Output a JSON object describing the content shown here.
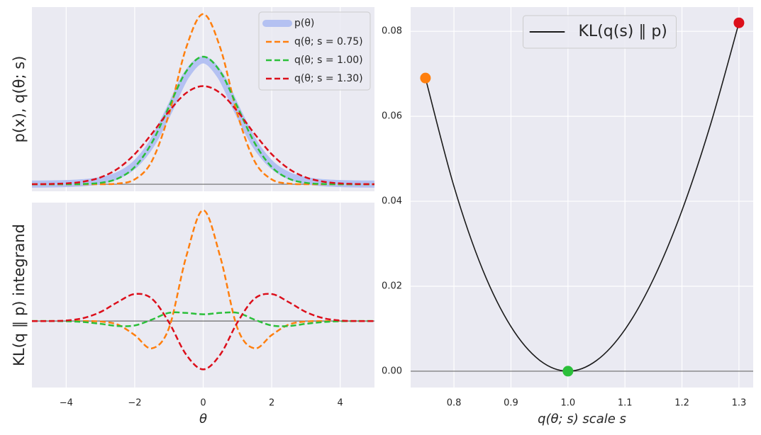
{
  "chart_data": [
    {
      "type": "line",
      "y_label": "p(x), q(θ; s)",
      "x": [
        -5,
        -4.5,
        -4,
        -3.5,
        -3,
        -2.5,
        -2,
        -1.5,
        -1,
        -0.5,
        0,
        0.5,
        1,
        1.5,
        2,
        2.5,
        3,
        3.5,
        4,
        4.5,
        5
      ],
      "series": [
        {
          "name": "p(θ)",
          "color": "#b4c1f2",
          "width": 10,
          "dash": false,
          "values": [
            0.0004,
            0.00088,
            0.00203,
            0.00478,
            0.0114,
            0.0269,
            0.0611,
            0.1274,
            0.23,
            0.34,
            0.389,
            0.34,
            0.23,
            0.1274,
            0.0611,
            0.0269,
            0.0114,
            0.00478,
            0.00203,
            0.00088,
            0.0004
          ]
        },
        {
          "name": "q(θ; s = 0.75)",
          "color": "#ff7f0e",
          "width": 2.5,
          "dash": true,
          "values": [
            0,
            0,
            0,
            0,
            0.00018,
            0.00206,
            0.01516,
            0.072,
            0.219,
            0.426,
            0.532,
            0.426,
            0.219,
            0.072,
            0.01516,
            0.00206,
            0.00018,
            0,
            0,
            0,
            0
          ]
        },
        {
          "name": "q(θ; s = 1.00)",
          "color": "#2bbf3a",
          "width": 2.5,
          "dash": true,
          "values": [
            0,
            0,
            0.00013,
            0.00087,
            0.00443,
            0.0175,
            0.054,
            0.1295,
            0.242,
            0.352,
            0.399,
            0.352,
            0.242,
            0.1295,
            0.054,
            0.0175,
            0.00443,
            0.00087,
            0.00013,
            0,
            0
          ]
        },
        {
          "name": "q(θ; s = 1.30)",
          "color": "#dc0f1b",
          "width": 2.5,
          "dash": true,
          "values": [
            0.00019,
            0.00077,
            0.0027,
            0.00818,
            0.0214,
            0.0483,
            0.0941,
            0.1577,
            0.228,
            0.285,
            0.307,
            0.285,
            0.228,
            0.1577,
            0.0941,
            0.0483,
            0.0214,
            0.00818,
            0.0027,
            0.00077,
            0.00019
          ]
        }
      ],
      "xlim": [
        -5,
        5
      ],
      "ylim": [
        -0.022,
        0.554
      ],
      "xgrid": [
        -4,
        -2,
        0,
        2,
        4
      ],
      "hline": 0,
      "legend": "upper right"
    },
    {
      "type": "line",
      "x_label": "θ",
      "y_label": "KL(q ∥ p) integrand",
      "x": [
        -5,
        -4.5,
        -4,
        -3.5,
        -3,
        -2.5,
        -2,
        -1.5,
        -1,
        -0.5,
        0,
        0.5,
        1,
        1.5,
        2,
        2.5,
        3,
        3.5,
        4,
        4.5,
        5
      ],
      "series": [
        {
          "color": "#ff7f0e",
          "width": 2.5,
          "dash": true,
          "values": [
            0,
            0,
            0,
            -6e-05,
            -0.00074,
            -0.0053,
            -0.0211,
            -0.0411,
            -0.0107,
            0.0961,
            0.1665,
            0.0961,
            -0.0107,
            -0.0411,
            -0.0211,
            -0.0053,
            -0.00074,
            -6e-05,
            0,
            0,
            0
          ]
        },
        {
          "color": "#2bbf3a",
          "width": 2.5,
          "dash": true,
          "values": [
            0,
            -6e-05,
            -0.00036,
            -0.0015,
            -0.0042,
            -0.0075,
            -0.0067,
            0.0021,
            0.0123,
            0.0122,
            0.0101,
            0.0122,
            0.0123,
            0.0021,
            -0.0067,
            -0.0075,
            -0.0042,
            -0.0015,
            -0.00036,
            -6e-05,
            0
          ]
        },
        {
          "color": "#dc0f1b",
          "width": 2.5,
          "dash": true,
          "values": [
            -0.00014,
            -0.0001,
            0.00077,
            0.0044,
            0.0135,
            0.0283,
            0.0406,
            0.0337,
            -0.002,
            -0.0503,
            -0.0727,
            -0.0503,
            -0.002,
            0.0337,
            0.0406,
            0.0283,
            0.0135,
            0.0044,
            0.00077,
            -0.0001,
            -0.00014
          ]
        }
      ],
      "xlim": [
        -5,
        5
      ],
      "ylim": [
        -0.1,
        0.178
      ],
      "xticks": [
        {
          "value": -4,
          "label": "−4"
        },
        {
          "value": -2,
          "label": "−2"
        },
        0,
        2,
        4
      ],
      "hline": 0
    },
    {
      "type": "line",
      "x_label": "q(θ; s) scale s",
      "x": [
        0.75,
        0.8,
        0.85,
        0.9,
        0.95,
        1.0,
        1.05,
        1.1,
        1.15,
        1.2,
        1.25,
        1.3
      ],
      "series": [
        {
          "name": "KL(q(s) ∥ p)",
          "color": "#1a1a1a",
          "width": 1.6,
          "dash": false,
          "values": [
            0.069,
            0.0435,
            0.024,
            0.0105,
            0.0026,
            0,
            0.0025,
            0.0098,
            0.0217,
            0.0378,
            0.058,
            0.082
          ],
          "highlight_indices": [
            0,
            5,
            11
          ],
          "highlight_colors": [
            "#ff7f0e",
            "#2bbf3a",
            "#dc0f1b"
          ]
        }
      ],
      "xlim": [
        0.724,
        1.325
      ],
      "ylim": [
        -0.00385,
        0.0857
      ],
      "xticks": [
        0.8,
        0.9,
        {
          "value": 1,
          "label": "1.0"
        },
        1.1,
        1.2,
        1.3
      ],
      "yticks": [
        {
          "value": 0,
          "label": "0.00"
        },
        0.02,
        0.04,
        0.06,
        0.08
      ],
      "hline": 0,
      "legend": "upper center"
    }
  ]
}
